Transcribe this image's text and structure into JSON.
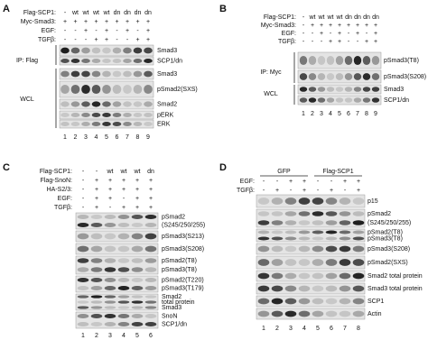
{
  "panels": [
    {
      "letter": "A",
      "treatments": [
        {
          "label": "Flag-SCP1:",
          "values": [
            "-",
            "wt",
            "wt",
            "wt",
            "wt",
            "dn",
            "dn",
            "dn",
            "dn"
          ]
        },
        {
          "label": "Myc-Smad3:",
          "values": [
            "+",
            "+",
            "+",
            "+",
            "+",
            "+",
            "+",
            "+",
            "+"
          ]
        },
        {
          "label": "EGF:",
          "values": [
            "-",
            "-",
            "+",
            "-",
            "+",
            "-",
            "+",
            "-",
            "+"
          ]
        },
        {
          "label": "TGFβ:",
          "values": [
            "-",
            "-",
            "-",
            "+",
            "+",
            "-",
            "-",
            "+",
            "+"
          ]
        }
      ],
      "side_labels": [
        "IP: Flag",
        "WCL"
      ],
      "blots": [
        {
          "labels": [
            "Smad3"
          ]
        },
        {
          "labels": [
            "SCP1/dn"
          ]
        },
        {
          "labels": [
            "Smad3"
          ]
        },
        {
          "labels": [
            "pSmad2(SXS)"
          ]
        },
        {
          "labels": [
            "Smad2"
          ]
        },
        {
          "labels": [
            "pERK"
          ]
        },
        {
          "labels": [
            "ERK"
          ]
        }
      ],
      "lanes": [
        1,
        2,
        3,
        4,
        5,
        6,
        7,
        8,
        9
      ]
    },
    {
      "letter": "B",
      "treatments": [
        {
          "label": "Flag-SCP1:",
          "values": [
            "-",
            "wt",
            "wt",
            "wt",
            "wt",
            "dn",
            "dn",
            "dn",
            "dn"
          ]
        },
        {
          "label": "Myc-Smad3:",
          "values": [
            "-",
            "+",
            "+",
            "+",
            "+",
            "+",
            "+",
            "+",
            "+"
          ]
        },
        {
          "label": "EGF:",
          "values": [
            "-",
            "-",
            "+",
            "-",
            "+",
            "-",
            "+",
            "-",
            "+"
          ]
        },
        {
          "label": "TGFβ:",
          "values": [
            "-",
            "-",
            "-",
            "+",
            "+",
            "-",
            "-",
            "+",
            "+"
          ]
        }
      ],
      "side_labels": [
        "IP: Myc",
        "WCL"
      ],
      "blots": [
        {
          "labels": [
            "pSmad3(T8)"
          ]
        },
        {
          "labels": [
            "pSmad3(S208)"
          ]
        },
        {
          "labels": [
            "Smad3"
          ]
        },
        {
          "labels": [
            "SCP1/dn"
          ]
        }
      ],
      "lanes": [
        1,
        2,
        3,
        4,
        5,
        6,
        7,
        8,
        9
      ]
    },
    {
      "letter": "C",
      "treatments": [
        {
          "label": "Flag-SCP1:",
          "values": [
            "-",
            "-",
            "wt",
            "wt",
            "wt",
            "dn"
          ]
        },
        {
          "label": "Flag-SnoN:",
          "values": [
            "-",
            "+",
            "+",
            "+",
            "+",
            "+"
          ]
        },
        {
          "label": "HA-S2/3:",
          "values": [
            "-",
            "+",
            "+",
            "+",
            "+",
            "+"
          ]
        },
        {
          "label": "EGF:",
          "values": [
            "-",
            "+",
            "+",
            "-",
            "+",
            "+"
          ]
        },
        {
          "label": "TGFβ:",
          "values": [
            "-",
            "+",
            "-",
            "+",
            "+",
            "+"
          ]
        }
      ],
      "blots": [
        {
          "labels": [
            "pSmad2",
            "(S245/250/255)"
          ]
        },
        {
          "labels": [
            "pSmad3(S213)"
          ]
        },
        {
          "labels": [
            "pSmad3(S208)"
          ]
        },
        {
          "labels": [
            "pSmad2(T8)",
            "pSmad3(T8)"
          ]
        },
        {
          "labels": [
            "pSmad2(T220)",
            "pSmad3(T179)"
          ]
        },
        {
          "labels": [
            "Smad2",
            "total protein",
            "Smad3"
          ]
        },
        {
          "labels": [
            "SnoN",
            "SCP1/dn"
          ]
        }
      ],
      "lanes": [
        1,
        2,
        3,
        4,
        5,
        6
      ]
    },
    {
      "letter": "D",
      "groups": [
        "GFP",
        "Flag-SCP1"
      ],
      "treatments": [
        {
          "label": "EGF:",
          "values": [
            "-",
            "-",
            "+",
            "+",
            "-",
            "-",
            "+",
            "+"
          ]
        },
        {
          "label": "TGFβ:",
          "values": [
            "-",
            "+",
            "-",
            "+",
            "-",
            "+",
            "-",
            "+"
          ]
        }
      ],
      "blots": [
        {
          "labels": [
            "p15"
          ]
        },
        {
          "labels": [
            "pSmad2",
            "(S245/250/255)"
          ]
        },
        {
          "labels": [
            "pSmad2(T8)",
            "pSmad3(T8)"
          ]
        },
        {
          "labels": [
            "pSmad3(S208)"
          ]
        },
        {
          "labels": [
            "pSmad2(SXS)"
          ]
        },
        {
          "labels": [
            "Smad2 total protein"
          ]
        },
        {
          "labels": [
            "Smad3 total protein"
          ]
        },
        {
          "labels": [
            "SCP1"
          ]
        },
        {
          "labels": [
            "Actin"
          ]
        }
      ],
      "lanes": [
        1,
        2,
        3,
        4,
        5,
        6,
        7,
        8
      ]
    }
  ]
}
